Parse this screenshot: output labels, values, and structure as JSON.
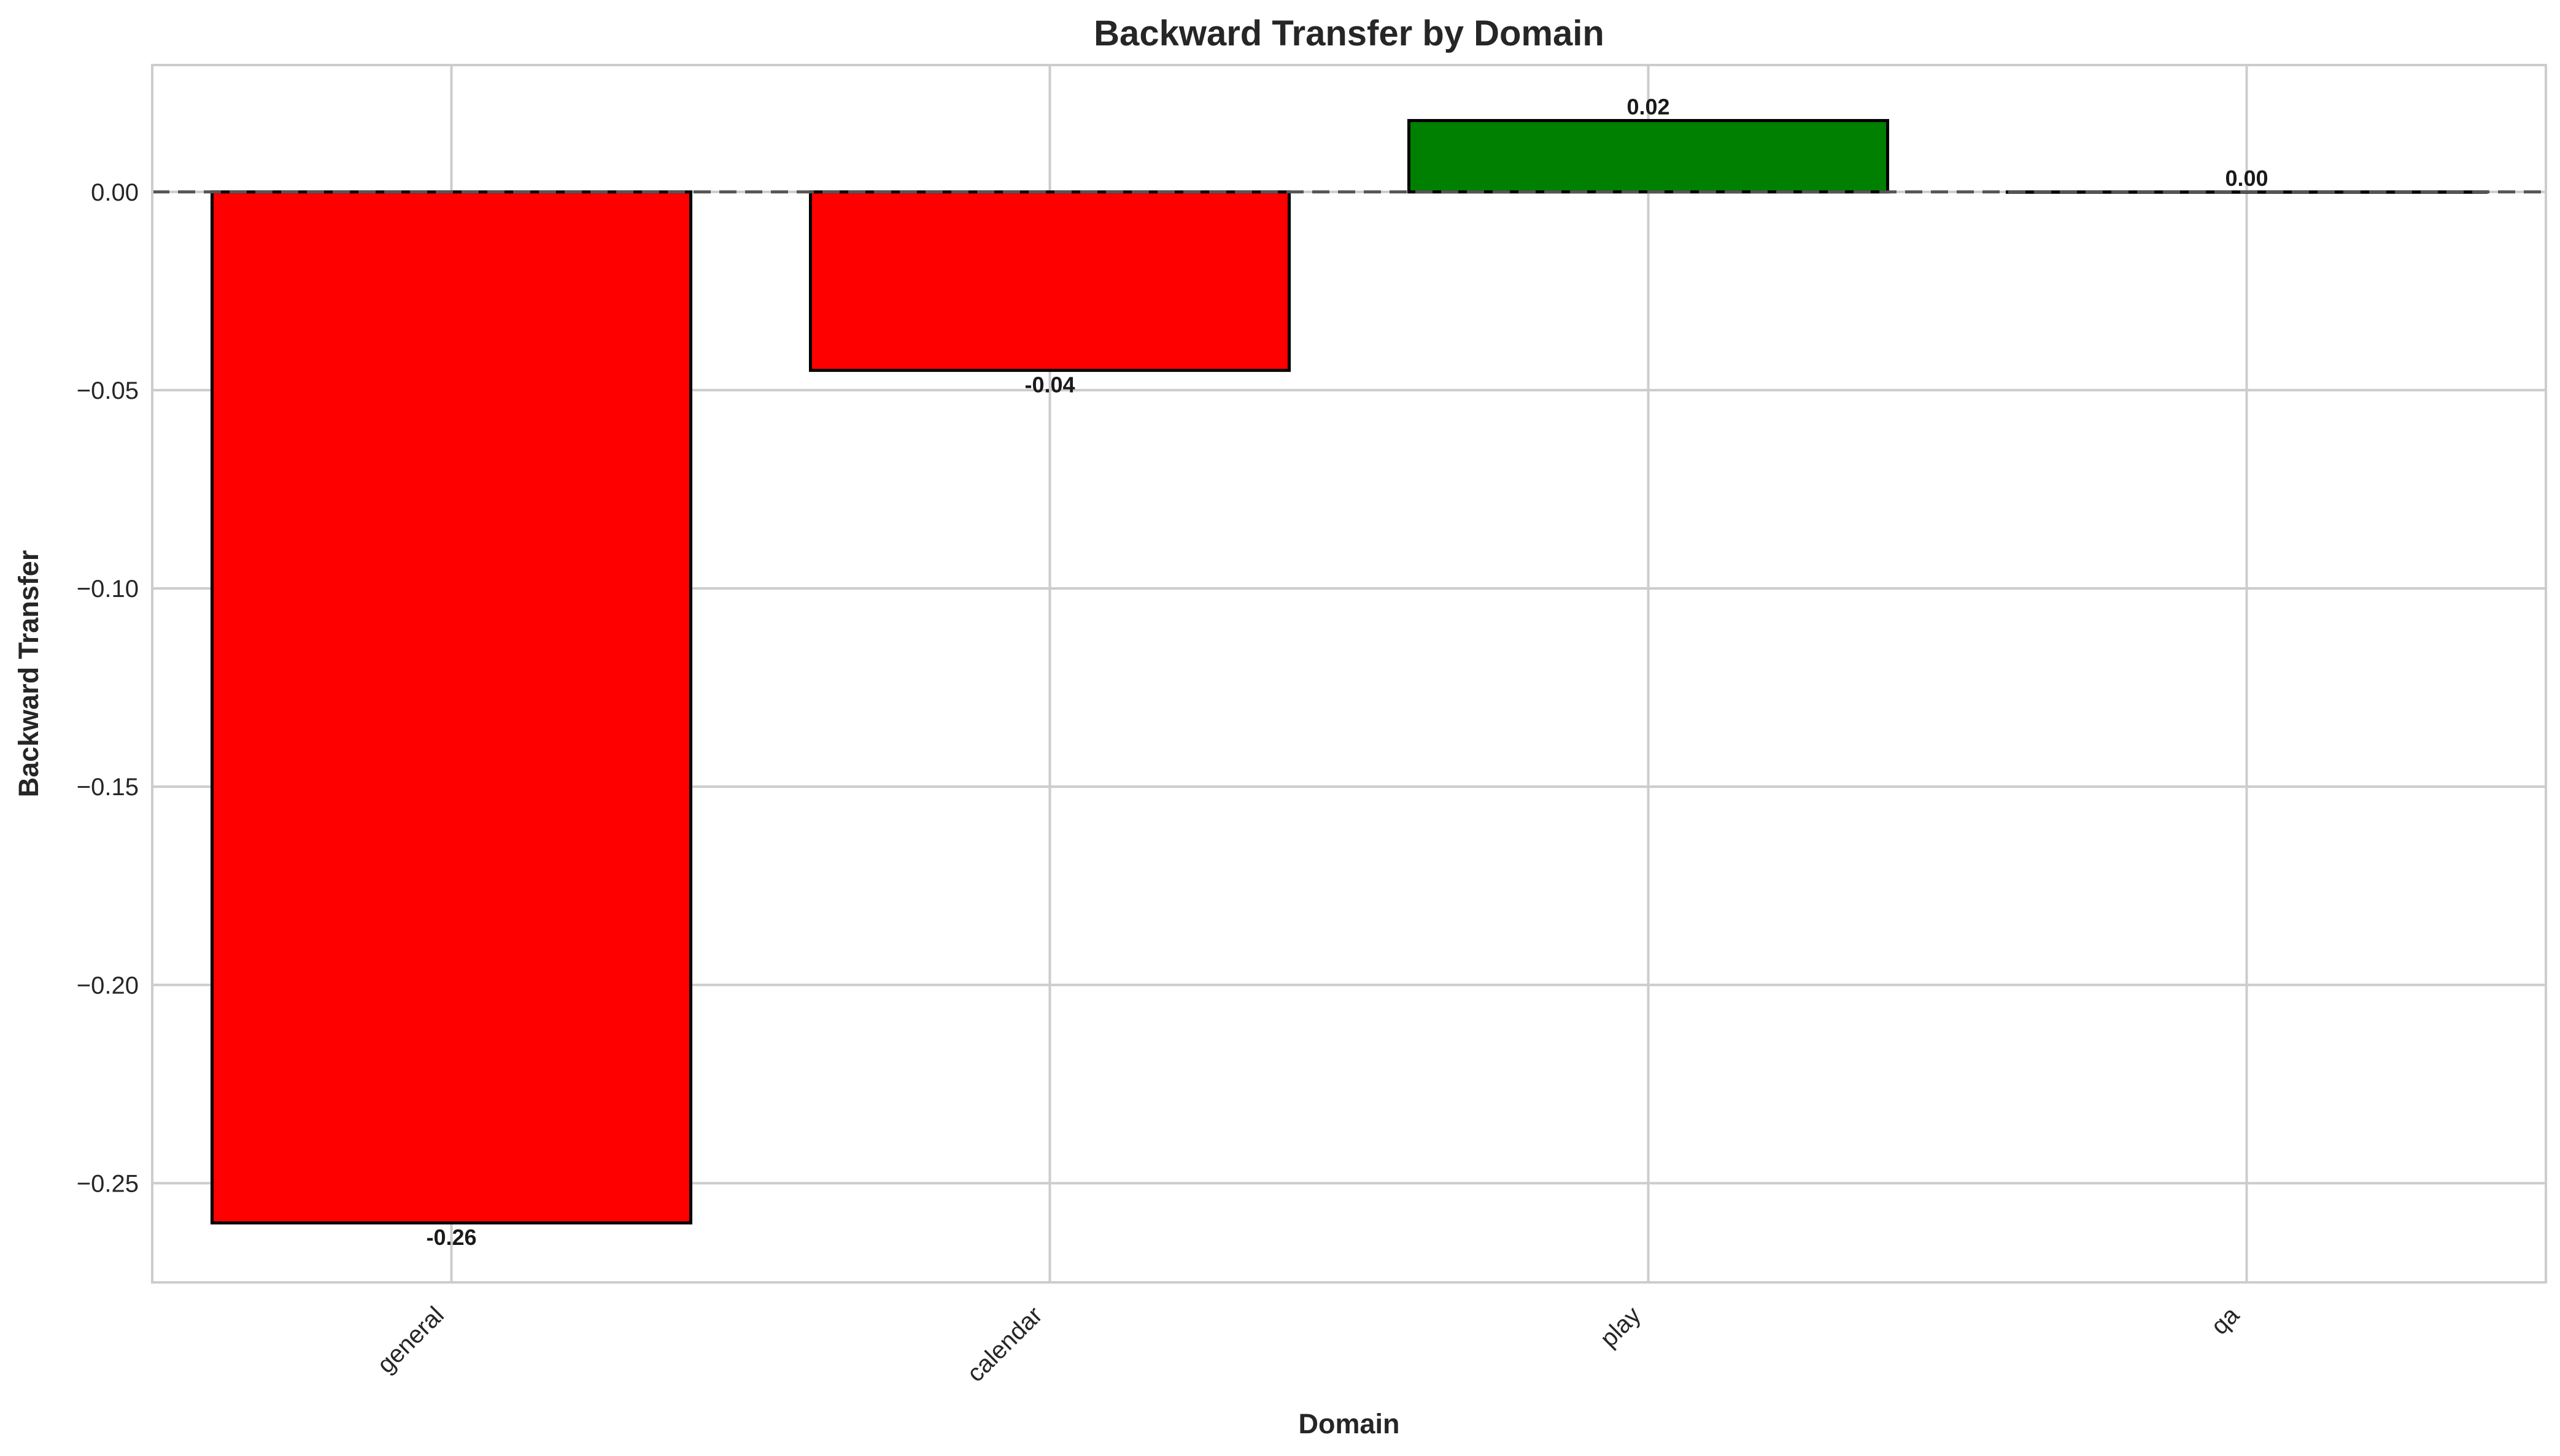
{
  "chart_data": {
    "type": "bar",
    "title": "Backward Transfer by Domain",
    "xlabel": "Domain",
    "ylabel": "Backward Transfer",
    "categories": [
      "general",
      "calendar",
      "play",
      "qa"
    ],
    "values": [
      -0.26,
      -0.045,
      0.018,
      0.0
    ],
    "value_labels": [
      "-0.26",
      "-0.04",
      "0.02",
      "0.00"
    ],
    "ylim": [
      -0.275,
      0.032
    ],
    "yticks": [
      0.0,
      -0.05,
      -0.1,
      -0.15,
      -0.2,
      -0.25
    ],
    "ytick_labels": [
      "0.00",
      "−0.05",
      "−0.10",
      "−0.15",
      "−0.20",
      "−0.25"
    ],
    "grid": true,
    "reference_line": {
      "y": 0.0,
      "style": "dashed"
    },
    "colors": {
      "negative": "#ff0000",
      "positive": "#008000",
      "edge": "#000000",
      "grid": "#cccccc",
      "reference": "#555555"
    }
  }
}
